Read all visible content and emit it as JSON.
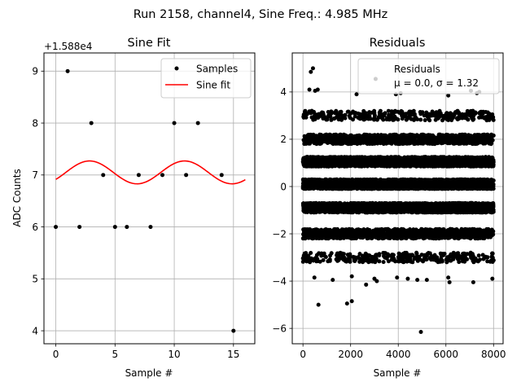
{
  "figure": {
    "suptitle": "Run 2158, channel4, Sine Freq.: 4.985 MHz"
  },
  "chart_data": [
    {
      "type": "scatter",
      "title": "Sine Fit",
      "xlabel": "Sample #",
      "ylabel": "ADC Counts",
      "offset_label": "+1.588e4",
      "xlim": [
        -1,
        16.8
      ],
      "ylim": [
        3.75,
        9.35
      ],
      "xticks": [
        0,
        5,
        10,
        15
      ],
      "yticks": [
        4,
        5,
        6,
        7,
        8,
        9
      ],
      "grid": true,
      "legend_placement": "upper-right",
      "samples": {
        "name": "Samples",
        "color": "#000000",
        "x": [
          0,
          1,
          2,
          3,
          4,
          5,
          6,
          7,
          8,
          9,
          10,
          11,
          12,
          13,
          14,
          15
        ],
        "y": [
          6,
          9,
          6,
          8,
          7,
          6,
          6,
          7,
          6,
          7,
          8,
          7,
          8,
          9,
          7,
          4
        ]
      },
      "fit": {
        "name": "Sine fit",
        "color": "#ff0000",
        "offset": 7.05,
        "amplitude": 0.22,
        "period_samples": 8.02,
        "phase_peak_sample": 2.85,
        "x_range": [
          0,
          16
        ]
      }
    },
    {
      "type": "scatter",
      "title": "Residuals",
      "xlabel": "Sample #",
      "ylabel": "",
      "xlim": [
        -450,
        8400
      ],
      "ylim": [
        -6.65,
        5.65
      ],
      "xticks": [
        0,
        2000,
        4000,
        6000,
        8000
      ],
      "yticks": [
        -6,
        -4,
        -2,
        0,
        2,
        4
      ],
      "grid": true,
      "legend_placement": "upper-right",
      "legend_label": "Residuals",
      "stats_label": "μ = 0.0, σ = 1.32",
      "mean": 0.0,
      "sigma": 1.32,
      "n_samples": 8000,
      "color": "#000000",
      "bands": [
        {
          "center": -3.0,
          "spread": 0.2,
          "count": 320
        },
        {
          "center": -2.0,
          "spread": 0.2,
          "count": 1100
        },
        {
          "center": -0.9,
          "spread": 0.2,
          "count": 2400
        },
        {
          "center": 0.1,
          "spread": 0.2,
          "count": 2700
        },
        {
          "center": 1.05,
          "spread": 0.2,
          "count": 2400
        },
        {
          "center": 2.0,
          "spread": 0.2,
          "count": 1100
        },
        {
          "center": 3.0,
          "spread": 0.2,
          "count": 320
        }
      ],
      "outliers": [
        {
          "x": 270,
          "y": 4.1
        },
        {
          "x": 330,
          "y": 4.85
        },
        {
          "x": 420,
          "y": 5.0
        },
        {
          "x": 510,
          "y": 4.05
        },
        {
          "x": 620,
          "y": 4.1
        },
        {
          "x": 2250,
          "y": 3.9
        },
        {
          "x": 3050,
          "y": 4.55
        },
        {
          "x": 3900,
          "y": 3.9
        },
        {
          "x": 4100,
          "y": 3.95
        },
        {
          "x": 6100,
          "y": 3.85
        },
        {
          "x": 7050,
          "y": 4.05
        },
        {
          "x": 7300,
          "y": 3.95
        },
        {
          "x": 7400,
          "y": 4.0
        },
        {
          "x": 480,
          "y": -3.85
        },
        {
          "x": 650,
          "y": -5.0
        },
        {
          "x": 1250,
          "y": -3.95
        },
        {
          "x": 1850,
          "y": -4.95
        },
        {
          "x": 2050,
          "y": -4.85
        },
        {
          "x": 2050,
          "y": -3.8
        },
        {
          "x": 2650,
          "y": -4.15
        },
        {
          "x": 3000,
          "y": -3.9
        },
        {
          "x": 3100,
          "y": -4.0
        },
        {
          "x": 3950,
          "y": -3.85
        },
        {
          "x": 4400,
          "y": -3.9
        },
        {
          "x": 4800,
          "y": -3.95
        },
        {
          "x": 4950,
          "y": -6.15
        },
        {
          "x": 5200,
          "y": -3.95
        },
        {
          "x": 6100,
          "y": -3.85
        },
        {
          "x": 6150,
          "y": -4.05
        },
        {
          "x": 7150,
          "y": -4.05
        },
        {
          "x": 7950,
          "y": -3.9
        }
      ]
    }
  ]
}
